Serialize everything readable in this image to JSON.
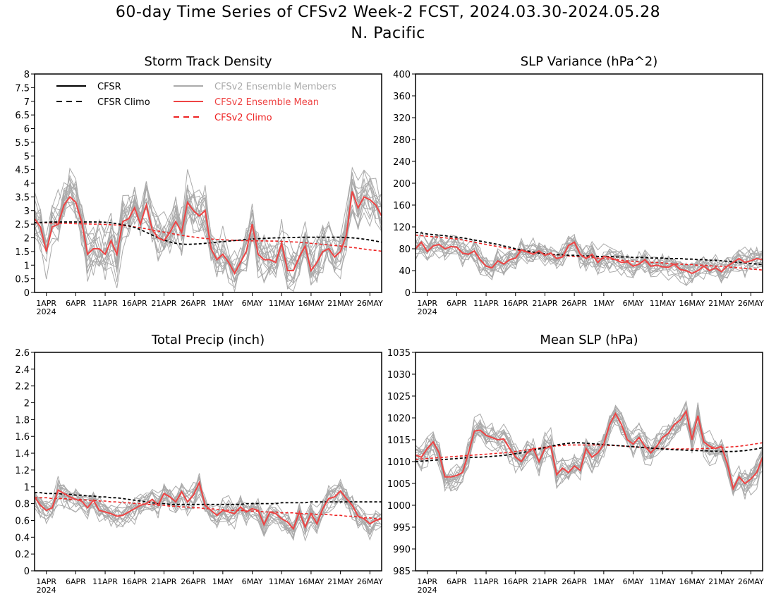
{
  "title": "60-day Time Series of CFSv2 Week-2 FCST, 2024.03.30-2024.05.28",
  "region": "N. Pacific",
  "colors": {
    "cfsr": "#000000",
    "cfsr_climo": "#000000",
    "members": "#aaaaaa",
    "ens_mean": "#ee4444",
    "cfsv2_climo": "#ee2222"
  },
  "date_ticks": [
    "1APR",
    "6APR",
    "11APR",
    "16APR",
    "21APR",
    "26APR",
    "1MAY",
    "6MAY",
    "11MAY",
    "16MAY",
    "21MAY",
    "26MAY"
  ],
  "year_label": "2024",
  "legend": [
    {
      "label": "CFSR",
      "style": "solid",
      "color": "#000000"
    },
    {
      "label": "CFSR Climo",
      "style": "dashed",
      "color": "#000000"
    },
    {
      "label": "CFSv2 Ensemble Members",
      "style": "solid",
      "color": "#aaaaaa"
    },
    {
      "label": "CFSv2 Ensemble Mean",
      "style": "solid",
      "color": "#ee4444"
    },
    {
      "label": "CFSv2 Climo",
      "style": "dashed",
      "color": "#ee2222"
    }
  ],
  "chart_data": [
    {
      "type": "line",
      "title": "Storm Track Density",
      "x": "daily 2024-03-30 to 2024-05-28",
      "ylim": [
        0,
        8
      ],
      "yticks": [
        "0",
        "0.5",
        "1",
        "1.5",
        "2",
        "2.5",
        "3",
        "3.5",
        "4",
        "4.5",
        "5",
        "5.5",
        "6",
        "6.5",
        "7",
        "7.5",
        "8"
      ],
      "legend": "top-left",
      "series": [
        {
          "name": "CFSv2 Ensemble Mean",
          "values": [
            2.7,
            2.4,
            1.5,
            2.4,
            2.5,
            3.2,
            3.5,
            3.3,
            2.6,
            1.4,
            1.6,
            1.6,
            1.4,
            1.9,
            1.4,
            2.6,
            2.7,
            3.1,
            2.5,
            3.2,
            2.3,
            2.0,
            1.9,
            2.2,
            2.6,
            2.2,
            3.3,
            3.0,
            2.8,
            3.0,
            1.6,
            1.2,
            1.4,
            1.1,
            0.7,
            1.1,
            1.5,
            2.5,
            1.4,
            1.2,
            1.2,
            1.1,
            1.8,
            0.8,
            0.8,
            1.3,
            1.7,
            0.8,
            1.1,
            1.5,
            1.6,
            1.3,
            1.5,
            2.1,
            3.7,
            3.1,
            3.5,
            3.4,
            3.2,
            2.8
          ]
        },
        {
          "name": "CFSR Climo",
          "values": [
            2.55,
            2.56,
            2.57,
            2.58,
            2.58,
            2.58,
            2.58,
            2.58,
            2.58,
            2.58,
            2.58,
            2.58,
            2.57,
            2.55,
            2.52,
            2.48,
            2.44,
            2.38,
            2.3,
            2.2,
            2.1,
            2.0,
            1.92,
            1.85,
            1.8,
            1.77,
            1.76,
            1.77,
            1.78,
            1.8,
            1.82,
            1.84,
            1.86,
            1.88,
            1.9,
            1.92,
            1.94,
            1.96,
            1.97,
            1.98,
            1.99,
            2.0,
            2.0,
            2.01,
            2.01,
            2.02,
            2.02,
            2.02,
            2.02,
            2.02,
            2.02,
            2.02,
            2.02,
            2.01,
            2.0,
            1.98,
            1.95,
            1.92,
            1.88,
            1.84
          ]
        },
        {
          "name": "CFSv2 Climo",
          "values": [
            2.55,
            2.55,
            2.55,
            2.54,
            2.54,
            2.53,
            2.53,
            2.52,
            2.52,
            2.51,
            2.5,
            2.5,
            2.49,
            2.48,
            2.47,
            2.45,
            2.43,
            2.4,
            2.37,
            2.33,
            2.29,
            2.25,
            2.21,
            2.17,
            2.13,
            2.09,
            2.06,
            2.03,
            2.0,
            1.98,
            1.96,
            1.94,
            1.93,
            1.92,
            1.91,
            1.9,
            1.9,
            1.89,
            1.89,
            1.89,
            1.88,
            1.88,
            1.87,
            1.86,
            1.85,
            1.84,
            1.82,
            1.8,
            1.78,
            1.76,
            1.74,
            1.72,
            1.7,
            1.67,
            1.65,
            1.62,
            1.59,
            1.56,
            1.54,
            1.51
          ]
        }
      ]
    },
    {
      "type": "line",
      "title": "SLP Variance (hPa^2)",
      "x": "daily 2024-03-30 to 2024-05-28",
      "ylim": [
        0,
        400
      ],
      "yticks": [
        "0",
        "40",
        "80",
        "120",
        "160",
        "200",
        "240",
        "280",
        "320",
        "360",
        "400"
      ],
      "series": [
        {
          "name": "CFSv2 Ensemble Mean",
          "values": [
            80,
            92,
            75,
            85,
            88,
            80,
            84,
            83,
            72,
            70,
            76,
            60,
            48,
            45,
            58,
            52,
            60,
            63,
            78,
            74,
            70,
            76,
            68,
            72,
            62,
            65,
            86,
            92,
            70,
            62,
            70,
            55,
            66,
            64,
            60,
            55,
            56,
            48,
            52,
            60,
            48,
            50,
            47,
            46,
            52,
            42,
            40,
            35,
            40,
            48,
            40,
            45,
            38,
            48,
            55,
            62,
            55,
            58,
            62,
            60
          ]
        },
        {
          "name": "CFSR Climo",
          "values": [
            110,
            109,
            107,
            106,
            105,
            104,
            102,
            101,
            100,
            98,
            96,
            94,
            92,
            90,
            88,
            85,
            83,
            80,
            78,
            76,
            74,
            72,
            71,
            70,
            69,
            69,
            68,
            68,
            67,
            67,
            67,
            66,
            66,
            66,
            65,
            65,
            65,
            64,
            64,
            64,
            63,
            63,
            63,
            62,
            62,
            62,
            61,
            61,
            60,
            60,
            59,
            59,
            58,
            57,
            56,
            55,
            54,
            53,
            52,
            51
          ]
        },
        {
          "name": "CFSv2 Climo",
          "values": [
            105,
            104,
            103,
            102,
            101,
            100,
            99,
            98,
            96,
            94,
            92,
            90,
            88,
            86,
            84,
            82,
            80,
            78,
            76,
            74,
            73,
            72,
            71,
            70,
            69,
            68,
            67,
            66,
            66,
            65,
            64,
            63,
            62,
            61,
            60,
            59,
            58,
            57,
            56,
            56,
            55,
            55,
            54,
            53,
            52,
            52,
            51,
            51,
            50,
            50,
            49,
            48,
            48,
            47,
            46,
            45,
            44,
            43,
            42,
            41
          ]
        }
      ]
    },
    {
      "type": "line",
      "title": "Total Precip (inch)",
      "x": "daily 2024-03-30 to 2024-05-28",
      "ylim": [
        0,
        2.6
      ],
      "yticks": [
        "0",
        "0.2",
        "0.4",
        "0.6",
        "0.8",
        "1",
        "1.2",
        "1.4",
        "1.6",
        "1.8",
        "2",
        "2.2",
        "2.4",
        "2.6"
      ],
      "series": [
        {
          "name": "CFSv2 Ensemble Mean",
          "values": [
            0.88,
            0.78,
            0.72,
            0.75,
            0.96,
            0.92,
            0.88,
            0.85,
            0.83,
            0.75,
            0.84,
            0.72,
            0.7,
            0.68,
            0.65,
            0.66,
            0.7,
            0.74,
            0.78,
            0.8,
            0.85,
            0.78,
            0.92,
            0.88,
            0.82,
            0.94,
            0.82,
            0.9,
            1.05,
            0.78,
            0.72,
            0.66,
            0.72,
            0.7,
            0.68,
            0.76,
            0.7,
            0.74,
            0.72,
            0.55,
            0.7,
            0.68,
            0.62,
            0.58,
            0.5,
            0.7,
            0.52,
            0.68,
            0.56,
            0.74,
            0.86,
            0.88,
            0.95,
            0.86,
            0.78,
            0.65,
            0.62,
            0.56,
            0.6,
            0.62
          ]
        },
        {
          "name": "CFSR Climo",
          "values": [
            0.93,
            0.93,
            0.92,
            0.92,
            0.92,
            0.91,
            0.91,
            0.9,
            0.9,
            0.89,
            0.89,
            0.88,
            0.88,
            0.87,
            0.87,
            0.86,
            0.85,
            0.84,
            0.83,
            0.82,
            0.81,
            0.8,
            0.8,
            0.79,
            0.79,
            0.79,
            0.79,
            0.79,
            0.79,
            0.79,
            0.79,
            0.79,
            0.79,
            0.79,
            0.79,
            0.79,
            0.8,
            0.8,
            0.8,
            0.8,
            0.8,
            0.8,
            0.81,
            0.81,
            0.81,
            0.81,
            0.81,
            0.82,
            0.82,
            0.82,
            0.82,
            0.82,
            0.82,
            0.82,
            0.82,
            0.82,
            0.82,
            0.82,
            0.82,
            0.82
          ]
        },
        {
          "name": "CFSv2 Climo",
          "values": [
            0.87,
            0.87,
            0.87,
            0.86,
            0.86,
            0.86,
            0.85,
            0.85,
            0.85,
            0.84,
            0.84,
            0.83,
            0.83,
            0.82,
            0.82,
            0.81,
            0.81,
            0.8,
            0.8,
            0.79,
            0.79,
            0.78,
            0.78,
            0.77,
            0.77,
            0.76,
            0.76,
            0.75,
            0.75,
            0.74,
            0.74,
            0.73,
            0.73,
            0.72,
            0.72,
            0.72,
            0.71,
            0.71,
            0.71,
            0.7,
            0.7,
            0.7,
            0.69,
            0.69,
            0.69,
            0.68,
            0.68,
            0.68,
            0.67,
            0.67,
            0.67,
            0.66,
            0.66,
            0.65,
            0.65,
            0.64,
            0.63,
            0.63,
            0.62,
            0.62
          ]
        }
      ]
    },
    {
      "type": "line",
      "title": "Mean SLP (hPa)",
      "x": "daily 2024-03-30 to 2024-05-28",
      "ylim": [
        985,
        1035
      ],
      "yticks": [
        "985",
        "990",
        "995",
        "1000",
        "1005",
        "1010",
        "1015",
        "1020",
        "1025",
        "1030",
        "1035"
      ],
      "series": [
        {
          "name": "CFSv2 Ensemble Mean",
          "values": [
            1011.5,
            1011.0,
            1013.0,
            1014.5,
            1012.0,
            1006.5,
            1006.5,
            1006.8,
            1007.5,
            1012.0,
            1017.0,
            1017.2,
            1016.0,
            1015.5,
            1015.0,
            1015.2,
            1013.0,
            1011.0,
            1010.0,
            1012.0,
            1013.0,
            1010.0,
            1013.0,
            1013.5,
            1007.0,
            1008.5,
            1007.5,
            1009.0,
            1008.0,
            1013.0,
            1011.0,
            1012.0,
            1014.0,
            1018.5,
            1021.0,
            1018.5,
            1015.0,
            1014.0,
            1015.5,
            1013.5,
            1012.0,
            1013.5,
            1015.5,
            1016.5,
            1018.5,
            1019.5,
            1021.5,
            1015.0,
            1020.5,
            1014.5,
            1013.5,
            1013.0,
            1013.5,
            1009.5,
            1003.8,
            1006.5,
            1005.0,
            1006.0,
            1007.5,
            1011.0
          ]
        },
        {
          "name": "CFSR Climo",
          "values": [
            1010.0,
            1010.1,
            1010.2,
            1010.3,
            1010.4,
            1010.5,
            1010.6,
            1010.7,
            1010.8,
            1010.9,
            1011.0,
            1011.0,
            1011.1,
            1011.2,
            1011.3,
            1011.4,
            1011.6,
            1011.8,
            1012.0,
            1012.3,
            1012.6,
            1012.9,
            1013.2,
            1013.5,
            1013.8,
            1014.0,
            1014.2,
            1014.3,
            1014.3,
            1014.2,
            1014.1,
            1014.0,
            1013.9,
            1013.8,
            1013.7,
            1013.6,
            1013.5,
            1013.4,
            1013.3,
            1013.2,
            1013.1,
            1013.0,
            1012.9,
            1012.8,
            1012.7,
            1012.7,
            1012.6,
            1012.6,
            1012.5,
            1012.5,
            1012.4,
            1012.4,
            1012.3,
            1012.3,
            1012.3,
            1012.4,
            1012.5,
            1012.7,
            1012.9,
            1013.2
          ]
        },
        {
          "name": "CFSv2 Climo",
          "values": [
            1010.5,
            1010.6,
            1010.7,
            1010.8,
            1010.9,
            1011.0,
            1011.1,
            1011.2,
            1011.3,
            1011.4,
            1011.5,
            1011.6,
            1011.7,
            1011.8,
            1011.9,
            1012.0,
            1012.1,
            1012.3,
            1012.5,
            1012.7,
            1012.9,
            1013.1,
            1013.3,
            1013.5,
            1013.6,
            1013.7,
            1013.8,
            1013.8,
            1013.8,
            1013.8,
            1013.8,
            1013.8,
            1013.8,
            1013.7,
            1013.7,
            1013.6,
            1013.5,
            1013.4,
            1013.3,
            1013.2,
            1013.1,
            1013.0,
            1013.0,
            1012.9,
            1012.9,
            1012.9,
            1012.9,
            1012.9,
            1012.9,
            1013.0,
            1013.0,
            1013.1,
            1013.2,
            1013.3,
            1013.4,
            1013.5,
            1013.7,
            1013.9,
            1014.1,
            1014.3
          ]
        }
      ]
    }
  ]
}
